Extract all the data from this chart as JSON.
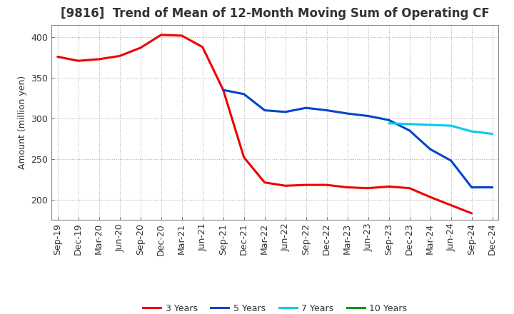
{
  "title": "[9816]  Trend of Mean of 12-Month Moving Sum of Operating CF",
  "ylabel": "Amount (million yen)",
  "background_color": "#ffffff",
  "grid_color": "#aaaaaa",
  "x_labels": [
    "Sep-19",
    "Dec-19",
    "Mar-20",
    "Jun-20",
    "Sep-20",
    "Dec-20",
    "Mar-21",
    "Jun-21",
    "Sep-21",
    "Dec-21",
    "Mar-22",
    "Jun-22",
    "Sep-22",
    "Dec-22",
    "Mar-23",
    "Jun-23",
    "Sep-23",
    "Dec-23",
    "Mar-24",
    "Jun-24",
    "Sep-24",
    "Dec-24"
  ],
  "series": [
    {
      "name": "3 Years",
      "color": "#ee0000",
      "linewidth": 2.2,
      "data_x": [
        0,
        1,
        2,
        3,
        4,
        5,
        6,
        7,
        8,
        9,
        10,
        11,
        12,
        13,
        14,
        15,
        16,
        17,
        18,
        19,
        20
      ],
      "data_y": [
        376,
        371,
        373,
        377,
        387,
        403,
        402,
        388,
        335,
        252,
        221,
        217,
        218,
        218,
        215,
        214,
        216,
        214,
        203,
        193,
        183
      ]
    },
    {
      "name": "5 Years",
      "color": "#0044cc",
      "linewidth": 2.2,
      "data_x": [
        8,
        9,
        10,
        11,
        12,
        13,
        14,
        15,
        16,
        17,
        18,
        19,
        20,
        21
      ],
      "data_y": [
        335,
        330,
        310,
        308,
        313,
        310,
        306,
        303,
        298,
        285,
        262,
        248,
        215,
        215
      ]
    },
    {
      "name": "7 Years",
      "color": "#00ccee",
      "linewidth": 2.2,
      "data_x": [
        16,
        17,
        18,
        19,
        20,
        21
      ],
      "data_y": [
        294,
        293,
        292,
        291,
        284,
        281
      ]
    },
    {
      "name": "10 Years",
      "color": "#009900",
      "linewidth": 2.2,
      "data_x": [],
      "data_y": []
    }
  ],
  "ylim": [
    175,
    415
  ],
  "yticks": [
    200,
    250,
    300,
    350,
    400
  ],
  "title_fontsize": 12,
  "title_color": "#333333",
  "axis_label_fontsize": 9,
  "tick_fontsize": 9,
  "legend_fontsize": 9
}
